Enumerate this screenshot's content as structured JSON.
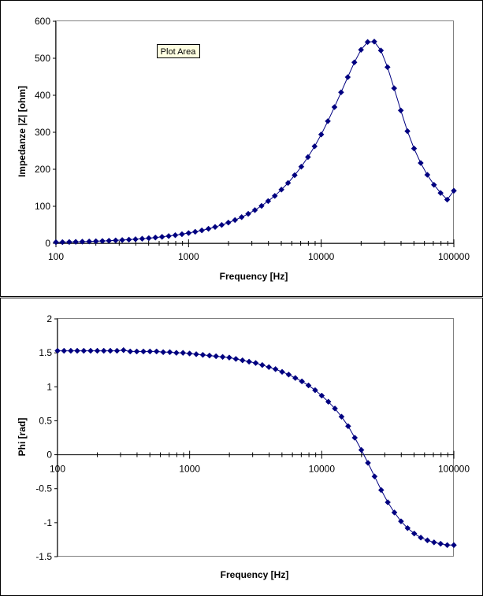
{
  "tooltip": "Plot Area",
  "colors": {
    "series": "#000080",
    "frame": "#000000",
    "tooltip_bg": "#FFFFE1"
  },
  "chart_data": [
    {
      "type": "line",
      "xscale": "log",
      "xlabel": "Frequency [Hz]",
      "ylabel": "Impedanze |Z| [ohm]",
      "xlim": [
        100,
        100000
      ],
      "ylim": [
        0,
        600
      ],
      "xticks": [
        "100",
        "1000",
        "10000",
        "100000"
      ],
      "yticks": [
        "0",
        "100",
        "200",
        "300",
        "400",
        "500",
        "600"
      ],
      "marker": "diamond",
      "grid": false,
      "x": [
        100,
        112,
        126,
        141,
        158,
        178,
        200,
        224,
        251,
        282,
        316,
        355,
        398,
        447,
        501,
        562,
        631,
        708,
        794,
        891,
        1000,
        1122,
        1259,
        1413,
        1585,
        1778,
        1995,
        2239,
        2512,
        2818,
        3162,
        3548,
        3981,
        4467,
        5012,
        5623,
        6310,
        7079,
        7943,
        8913,
        10000,
        11220,
        12589,
        14125,
        15849,
        17783,
        19953,
        22387,
        25119,
        28184,
        31623,
        35481,
        39811,
        44668,
        50119,
        56234,
        63096,
        70795,
        79433,
        89125,
        100000
      ],
      "y": [
        2.8,
        3.1,
        3.5,
        3.9,
        4.4,
        4.9,
        5.5,
        6.2,
        6.9,
        7.8,
        8.7,
        9.8,
        11.0,
        12.3,
        13.8,
        15.5,
        17.4,
        19.5,
        21.9,
        24.6,
        27.6,
        31.0,
        34.9,
        39.2,
        44.1,
        49.6,
        55.8,
        62.8,
        70.7,
        79.6,
        89.7,
        101,
        114,
        128,
        145,
        163,
        184,
        207,
        233,
        262,
        294,
        330,
        368,
        408,
        449,
        489,
        523,
        544,
        545,
        521,
        476,
        419,
        359,
        303,
        256,
        217,
        185,
        158,
        136,
        118,
        142
      ]
    },
    {
      "type": "line",
      "xscale": "log",
      "xlabel": "Frequency [Hz]",
      "ylabel": "Phi [rad]",
      "xlim": [
        100,
        100000
      ],
      "ylim": [
        -1.5,
        2
      ],
      "xticks": [
        "100",
        "1000",
        "10000",
        "100000"
      ],
      "yticks": [
        "-1.5",
        "-1",
        "-0.5",
        "0",
        "0.5",
        "1",
        "1.5",
        "2"
      ],
      "marker": "diamond",
      "grid": false,
      "x": [
        100,
        112,
        126,
        141,
        158,
        178,
        200,
        224,
        251,
        282,
        316,
        355,
        398,
        447,
        501,
        562,
        631,
        708,
        794,
        891,
        1000,
        1122,
        1259,
        1413,
        1585,
        1778,
        1995,
        2239,
        2512,
        2818,
        3162,
        3548,
        3981,
        4467,
        5012,
        5623,
        6310,
        7079,
        7943,
        8913,
        10000,
        11220,
        12589,
        14125,
        15849,
        17783,
        19953,
        22387,
        25119,
        28184,
        31623,
        35481,
        39811,
        44668,
        50119,
        56234,
        63096,
        70795,
        79433,
        89125,
        100000
      ],
      "y": [
        1.53,
        1.53,
        1.53,
        1.53,
        1.53,
        1.53,
        1.53,
        1.53,
        1.53,
        1.53,
        1.54,
        1.52,
        1.52,
        1.52,
        1.52,
        1.52,
        1.51,
        1.51,
        1.5,
        1.5,
        1.49,
        1.48,
        1.47,
        1.46,
        1.45,
        1.44,
        1.43,
        1.41,
        1.39,
        1.37,
        1.35,
        1.32,
        1.29,
        1.26,
        1.22,
        1.18,
        1.13,
        1.08,
        1.02,
        0.95,
        0.87,
        0.78,
        0.68,
        0.56,
        0.42,
        0.25,
        0.07,
        -0.12,
        -0.32,
        -0.52,
        -0.7,
        -0.85,
        -0.98,
        -1.08,
        -1.16,
        -1.22,
        -1.26,
        -1.29,
        -1.31,
        -1.33,
        -1.33
      ]
    }
  ]
}
